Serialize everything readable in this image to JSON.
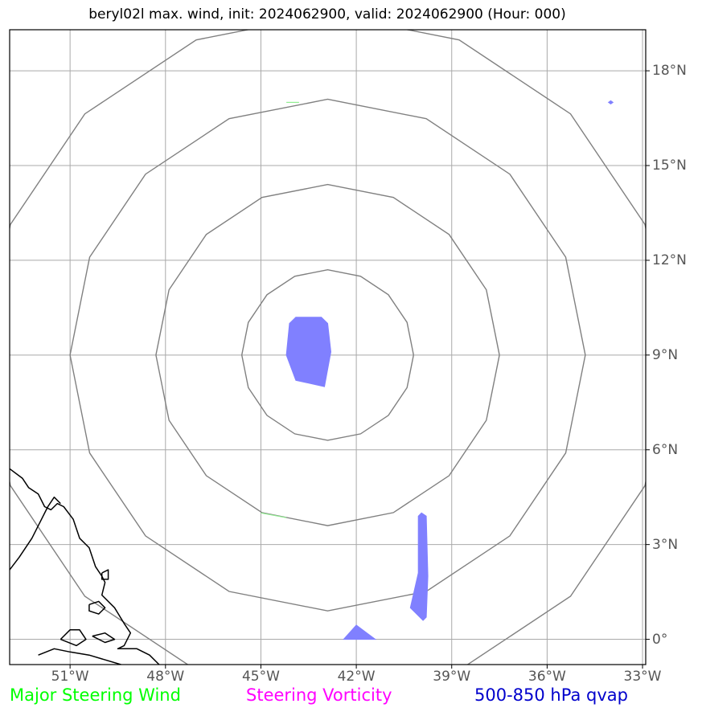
{
  "title": "beryl02l max. wind, init: 2024062900, valid: 2024062900 (Hour: 000)",
  "map": {
    "lon_range": [
      -52.9,
      -32.9
    ],
    "lat_range": [
      -0.8,
      19.3
    ],
    "lon_ticks": [
      {
        "lon": -51,
        "label": "51°W"
      },
      {
        "lon": -48,
        "label": "48°W"
      },
      {
        "lon": -45,
        "label": "45°W"
      },
      {
        "lon": -42,
        "label": "42°W"
      },
      {
        "lon": -39,
        "label": "39°W"
      },
      {
        "lon": -36,
        "label": "36°W"
      },
      {
        "lon": -33,
        "label": "33°W"
      }
    ],
    "lat_ticks": [
      {
        "lat": 0,
        "label": "0°"
      },
      {
        "lat": 3,
        "label": "3°N"
      },
      {
        "lat": 6,
        "label": "6°N"
      },
      {
        "lat": 9,
        "label": "9°N"
      },
      {
        "lat": 12,
        "label": "12°N"
      },
      {
        "lat": 15,
        "label": "15°N"
      },
      {
        "lat": 18,
        "label": "18°N"
      }
    ],
    "range_rings": {
      "center": {
        "lon": -42.9,
        "lat": 9.0
      },
      "radii_deg": [
        2.7,
        5.4,
        8.1,
        10.8
      ],
      "color": "#808080"
    },
    "qvap_fill_color": "#8080ff",
    "qvap_regions": [
      {
        "name": "center-blob",
        "points": [
          [
            -43.9,
            10.2
          ],
          [
            -43.1,
            10.2
          ],
          [
            -42.9,
            10.0
          ],
          [
            -42.8,
            9.1
          ],
          [
            -43.0,
            8.0
          ],
          [
            -43.9,
            8.2
          ],
          [
            -44.2,
            9.0
          ],
          [
            -44.1,
            10.0
          ]
        ]
      },
      {
        "name": "south-streak",
        "points": [
          [
            -39.95,
            4.0
          ],
          [
            -39.8,
            3.9
          ],
          [
            -39.75,
            2.0
          ],
          [
            -39.8,
            0.7
          ],
          [
            -39.9,
            0.6
          ],
          [
            -40.3,
            1.0
          ],
          [
            -40.05,
            2.1
          ],
          [
            -40.05,
            3.9
          ]
        ]
      },
      {
        "name": "equator-blob",
        "points": [
          [
            -42.4,
            0.0
          ],
          [
            -42.0,
            0.45
          ],
          [
            -41.4,
            0.0
          ]
        ]
      },
      {
        "name": "ne-dot",
        "points": [
          [
            -34.0,
            17.05
          ],
          [
            -33.93,
            17.0
          ],
          [
            -34.0,
            16.95
          ],
          [
            -34.07,
            17.0
          ]
        ]
      }
    ],
    "wind_traces": [
      {
        "name": "north-green",
        "points": [
          [
            -44.2,
            17.0
          ],
          [
            -43.8,
            17.0
          ]
        ],
        "color": "#90ee90"
      },
      {
        "name": "south-green",
        "points": [
          [
            -45.0,
            4.0
          ],
          [
            -44.2,
            3.85
          ]
        ],
        "color": "#90ee90"
      }
    ],
    "coastline": [
      [
        [
          -52.9,
          5.4
        ],
        [
          -52.5,
          5.1
        ],
        [
          -52.3,
          4.8
        ],
        [
          -52.0,
          4.6
        ],
        [
          -51.8,
          4.2
        ],
        [
          -51.6,
          4.1
        ],
        [
          -51.4,
          4.3
        ],
        [
          -51.2,
          4.2
        ],
        [
          -50.9,
          3.8
        ],
        [
          -50.7,
          3.2
        ],
        [
          -50.4,
          2.9
        ],
        [
          -50.2,
          2.3
        ],
        [
          -50.0,
          2.0
        ],
        [
          -49.9,
          1.8
        ],
        [
          -50.0,
          1.4
        ],
        [
          -49.6,
          1.0
        ],
        [
          -49.3,
          0.5
        ],
        [
          -49.1,
          0.2
        ],
        [
          -49.3,
          -0.2
        ],
        [
          -49.5,
          -0.3
        ],
        [
          -48.9,
          -0.3
        ],
        [
          -48.5,
          -0.5
        ],
        [
          -48.2,
          -0.8
        ]
      ],
      [
        [
          -52.9,
          2.2
        ],
        [
          -52.6,
          2.6
        ],
        [
          -52.2,
          3.2
        ],
        [
          -51.9,
          3.8
        ],
        [
          -51.7,
          4.2
        ],
        [
          -51.5,
          4.5
        ],
        [
          -51.3,
          4.3
        ]
      ],
      [
        [
          -50.0,
          2.1
        ],
        [
          -49.8,
          2.2
        ],
        [
          -49.8,
          1.9
        ],
        [
          -50.0,
          1.9
        ],
        [
          -50.0,
          2.1
        ]
      ],
      [
        [
          -50.4,
          1.1
        ],
        [
          -50.1,
          1.2
        ],
        [
          -49.9,
          1.0
        ],
        [
          -50.1,
          0.8
        ],
        [
          -50.4,
          0.9
        ],
        [
          -50.4,
          1.1
        ]
      ],
      [
        [
          -51.3,
          0.0
        ],
        [
          -51.0,
          0.3
        ],
        [
          -50.7,
          0.3
        ],
        [
          -50.5,
          0.0
        ],
        [
          -50.8,
          -0.2
        ],
        [
          -51.3,
          0.0
        ]
      ],
      [
        [
          -50.3,
          0.1
        ],
        [
          -49.9,
          0.2
        ],
        [
          -49.6,
          0.0
        ],
        [
          -49.9,
          -0.1
        ],
        [
          -50.3,
          0.1
        ]
      ],
      [
        [
          -52.0,
          -0.5
        ],
        [
          -51.5,
          -0.3
        ],
        [
          -51.0,
          -0.4
        ],
        [
          -50.4,
          -0.5
        ],
        [
          -49.4,
          -0.8
        ]
      ]
    ]
  },
  "legend": [
    {
      "label": "Major Steering Wind",
      "color": "#00ff00"
    },
    {
      "label": "Steering Vorticity",
      "color": "#ff00ff"
    },
    {
      "label": "500-850 hPa qvap",
      "color": "#0000cc"
    }
  ]
}
